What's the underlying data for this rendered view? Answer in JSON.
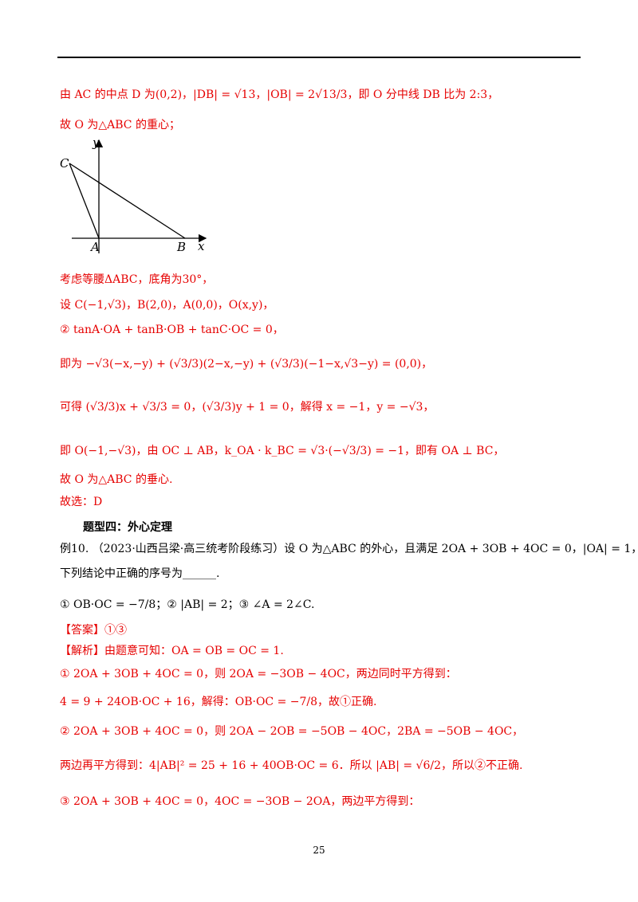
{
  "lines": [
    {
      "text": "由 AC 的中点 D 为(0,2)，|DB| = √13，|OB| = 2√13/3，即 O 分中线 DB 比为 2:3，",
      "color": "#e60000"
    },
    {
      "text": "故 O 为△ABC 的重心；",
      "color": "#e60000"
    },
    {
      "text": "考虑等腰ΔABC，底角为30°，",
      "color": "#e60000"
    },
    {
      "text": "设 C(−1,√3)，B(2,0)，A(0,0)，O(x,y)，",
      "color": "#e60000"
    },
    {
      "text": "② tanA·OA + tanB·OB + tanC·OC = 0，",
      "color": "#e60000"
    },
    {
      "text": "即为 −√3(−x,−y) + (√3/3)(2−x,−y) + (√3/3)(−1−x,√3−y) = (0,0)，",
      "color": "#e60000"
    },
    {
      "text": "可得 (√3/3)x + √3/3 = 0，(√3/3)y + 1 = 0，解得 x = −1，y = −√3，",
      "color": "#e60000"
    },
    {
      "text": "即 O(−1,−√3)，由 OC ⊥ AB，k_OA · k_BC = √3·(−√3/3) = −1，即有 OA ⊥ BC，",
      "color": "#e60000"
    },
    {
      "text": "故 O 为△ABC 的垂心.",
      "color": "#e60000"
    },
    {
      "text": "故选：D",
      "color": "#e60000"
    },
    {
      "text": "题型四：外心定理",
      "color": "#000000"
    },
    {
      "text": "例10. （2023·山西吕梁·高三统考阶段练习）设 O 为△ABC 的外心，且满足 2OA + 3OB + 4OC = 0，|OA| = 1，",
      "color": "#000000"
    },
    {
      "text": "下列结论中正确的序号为______.",
      "color": "#000000"
    },
    {
      "text": "① OB·OC = −7/8；② |AB| = 2；③ ∠A = 2∠C.",
      "color": "#000000"
    },
    {
      "text": "【答案】①③",
      "color": "#e60000"
    },
    {
      "text": "【解析】由题意可知：OA = OB = OC = 1.",
      "color": "#e60000"
    },
    {
      "text": "① 2OA + 3OB + 4OC = 0，则 2OA = −3OB − 4OC，两边同时平方得到：",
      "color": "#e60000"
    },
    {
      "text": "4 = 9 + 24OB·OC + 16，解得：OB·OC = −7/8，故①正确.",
      "color": "#e60000"
    },
    {
      "text": "② 2OA + 3OB + 4OC = 0，则 2OA − 2OB = −5OB − 4OC，2BA = −5OB − 4OC，",
      "color": "#e60000"
    },
    {
      "text": "两边再平方得到：4|AB|² = 25 + 16 + 40OB·OC = 6．所以 |AB| = √6/2，所以②不正确.",
      "color": "#e60000"
    },
    {
      "text": "③ 2OA + 3OB + 4OC = 0，4OC = −3OB − 2OA，两边平方得到：",
      "color": "#e60000"
    }
  ],
  "figure": {
    "labels": [
      "C",
      "y",
      "A",
      "B",
      "x"
    ]
  },
  "footer": {
    "page": "25"
  }
}
